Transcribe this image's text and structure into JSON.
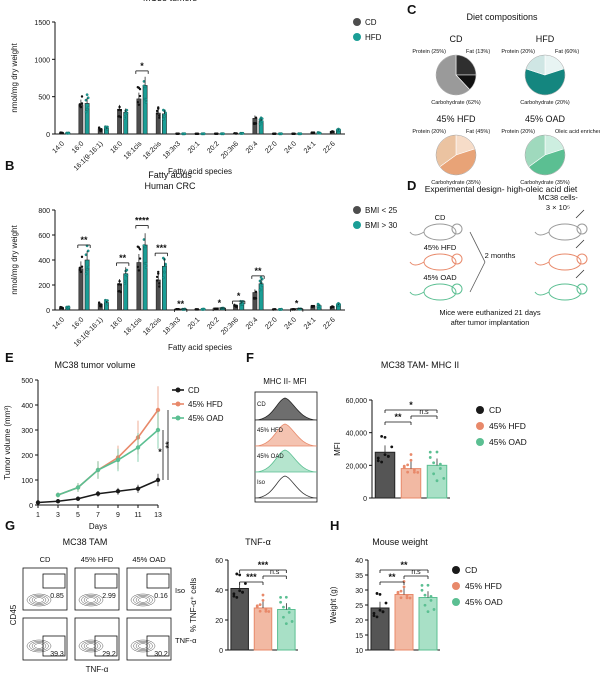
{
  "colors": {
    "cd": "#4d4d4d",
    "hfd": "#1a9e96",
    "hfd_orange": "#e8896a",
    "oad": "#5bbf92",
    "dark": "#1a1a1a"
  },
  "panels": {
    "A": "A",
    "B": "B",
    "C": "C",
    "D": "D",
    "E": "E",
    "F": "F",
    "G": "G",
    "H": "H"
  },
  "chart_data": [
    {
      "id": "A",
      "type": "bar",
      "title": "Fatty acids",
      "subtitle": "MC38 tumors",
      "xlabel": "Fatty acid species",
      "ylabel": "nmol/mg dry weight",
      "ylim": [
        0,
        1500
      ],
      "yticks": [
        0,
        500,
        1000,
        1500
      ],
      "categories": [
        "14:0",
        "16:0",
        "16:1(9-16:1)",
        "18:0",
        "18:1cis",
        "18:2cis",
        "18:3n3",
        "20:1",
        "20:2",
        "20:3n6",
        "20:4",
        "22:0",
        "24:0",
        "24:1",
        "22:6"
      ],
      "series": [
        {
          "name": "CD",
          "values": [
            15,
            390,
            65,
            330,
            470,
            280,
            3,
            3,
            3,
            8,
            210,
            3,
            3,
            15,
            35
          ]
        },
        {
          "name": "HFD",
          "values": [
            12,
            410,
            75,
            290,
            650,
            270,
            3,
            3,
            3,
            8,
            175,
            3,
            3,
            15,
            50
          ]
        }
      ],
      "significance": [
        {
          "category": "18:1cis",
          "label": "*"
        }
      ],
      "legend": "top-right"
    },
    {
      "id": "B",
      "type": "bar",
      "title": "Fatty acids",
      "subtitle": "Human CRC",
      "xlabel": "Fatty acid species",
      "ylabel": "nmol/mg dry weight",
      "ylim": [
        0,
        800
      ],
      "yticks": [
        0,
        200,
        400,
        600,
        800
      ],
      "categories": [
        "14:0",
        "16:0",
        "16:1(9-16:1)",
        "18:0",
        "18:1cis",
        "18:2cis",
        "18:3n3",
        "20:1",
        "20:2",
        "20:3n6",
        "20:4",
        "22:0",
        "24:0",
        "24:1",
        "22:6"
      ],
      "series": [
        {
          "name": "BMI < 25",
          "values": [
            18,
            330,
            45,
            210,
            380,
            240,
            5,
            5,
            8,
            35,
            140,
            4,
            5,
            25,
            28
          ]
        },
        {
          "name": "BMI > 30",
          "values": [
            22,
            400,
            60,
            290,
            520,
            350,
            6,
            6,
            12,
            55,
            210,
            5,
            8,
            35,
            40
          ]
        }
      ],
      "significance": [
        {
          "category": "16:0",
          "label": "**"
        },
        {
          "category": "18:0",
          "label": "**"
        },
        {
          "category": "18:1cis",
          "label": "****"
        },
        {
          "category": "18:2cis",
          "label": "***"
        },
        {
          "category": "18:3n3",
          "label": "**"
        },
        {
          "category": "20:2",
          "label": "*"
        },
        {
          "category": "20:3n6",
          "label": "*"
        },
        {
          "category": "20:4",
          "label": "**"
        },
        {
          "category": "24:0",
          "label": "*"
        }
      ],
      "legend": "top-right"
    },
    {
      "id": "C",
      "type": "pie",
      "title": "Diet compositions",
      "pies": [
        {
          "name": "CD",
          "slices": [
            {
              "label": "Protein (25%)",
              "value": 25
            },
            {
              "label": "Fat (13%)",
              "value": 13
            },
            {
              "label": "Carbohydrate (62%)",
              "value": 62
            }
          ]
        },
        {
          "name": "HFD",
          "slices": [
            {
              "label": "Protein (20%)",
              "value": 20
            },
            {
              "label": "Fat (60%)",
              "value": 60
            },
            {
              "label": "Carbohydrate (20%)",
              "value": 20
            }
          ]
        },
        {
          "name": "45% HFD",
          "slices": [
            {
              "label": "Protein (20%)",
              "value": 20
            },
            {
              "label": "Fat (45%)",
              "value": 45
            },
            {
              "label": "Carbohydrate (35%)",
              "value": 35
            }
          ]
        },
        {
          "name": "45% OAD",
          "slices": [
            {
              "label": "Protein (20%)",
              "value": 20
            },
            {
              "label": "Oleic acid enriched (45%)",
              "value": 45
            },
            {
              "label": "Carbohydrate (35%)",
              "value": 35
            }
          ]
        }
      ]
    },
    {
      "id": "E",
      "type": "line",
      "title": "MC38 tumor volume",
      "xlabel": "Days",
      "ylabel": "Tumor volume (mm³)",
      "x": [
        1,
        3,
        5,
        7,
        9,
        11,
        13
      ],
      "xlim": [
        1,
        13
      ],
      "ylim": [
        0,
        500
      ],
      "yticks": [
        0,
        100,
        200,
        300,
        400,
        500
      ],
      "series": [
        {
          "name": "CD",
          "x": [
            1,
            3,
            5,
            7,
            9,
            11,
            13
          ],
          "values": [
            10,
            15,
            25,
            45,
            55,
            65,
            100
          ]
        },
        {
          "name": "45% HFD",
          "x": [
            3,
            5,
            7,
            9,
            11,
            13
          ],
          "values": [
            40,
            70,
            140,
            190,
            270,
            380
          ]
        },
        {
          "name": "45% OAD",
          "x": [
            3,
            5,
            7,
            9,
            11,
            13
          ],
          "values": [
            40,
            70,
            140,
            180,
            230,
            300
          ]
        }
      ],
      "significance": [
        {
          "label": "*"
        },
        {
          "label": "**"
        }
      ],
      "legend": "top-right"
    },
    {
      "id": "F",
      "type": "bar",
      "title": "MC38 TAM- MHC II",
      "histogram_title": "MHC II- MFI",
      "histogram_labels": [
        "CD",
        "45% HFD",
        "45% OAD",
        "Iso"
      ],
      "ylabel": "MFI",
      "ylim": [
        0,
        60000
      ],
      "yticks": [
        "0",
        "20,000",
        "40,000",
        "60,000"
      ],
      "categories": [
        "CD",
        "45% HFD",
        "45% OAD"
      ],
      "values": [
        28000,
        18000,
        20000
      ],
      "significance": [
        {
          "pair": "CD-45% HFD",
          "label": "**"
        },
        {
          "pair": "CD-45% OAD",
          "label": "*"
        },
        {
          "pair": "45% HFD-45% OAD",
          "label": "n.s"
        }
      ],
      "legend": "right"
    },
    {
      "id": "G",
      "type": "bar",
      "title": "TNF-α",
      "flow_title": "MC38 TAM",
      "flow_columns": [
        "CD",
        "45% HFD",
        "45% OAD"
      ],
      "flow_rows": [
        "Iso",
        "TNF-α"
      ],
      "flow_values": {
        "Iso": [
          "0.85",
          "2.99",
          "0.16"
        ],
        "TNF-α": [
          "39.3",
          "29.2",
          "30.2"
        ]
      },
      "flow_ylabel": "CD45",
      "flow_xlabel": "TNF-α",
      "ylabel": "% TNF-α⁺ cells",
      "ylim": [
        0,
        60
      ],
      "yticks": [
        0,
        20,
        40,
        60
      ],
      "categories": [
        "CD",
        "45% HFD",
        "45% OAD"
      ],
      "values": [
        41,
        28,
        27
      ],
      "significance": [
        {
          "pair": "CD-45% HFD",
          "label": "***"
        },
        {
          "pair": "CD-45% OAD",
          "label": "***"
        },
        {
          "pair": "45% HFD-45% OAD",
          "label": "n.s"
        }
      ]
    },
    {
      "id": "H",
      "type": "bar",
      "title": "Mouse weight",
      "ylabel": "Weight (g)",
      "ylim": [
        10,
        40
      ],
      "yticks": [
        10,
        15,
        20,
        25,
        30,
        35,
        40
      ],
      "categories": [
        "CD",
        "45% HFD",
        "45% OAD"
      ],
      "values": [
        24,
        28.5,
        27.5
      ],
      "significance": [
        {
          "pair": "CD-45% HFD",
          "label": "**"
        },
        {
          "pair": "CD-45% OAD",
          "label": "**"
        },
        {
          "pair": "45% HFD-45% OAD",
          "label": "n.s"
        }
      ],
      "legend": "right"
    }
  ],
  "design": {
    "title": "Experimental design- high-oleic acid diet",
    "groups": [
      "CD",
      "45% HFD",
      "45% OAD"
    ],
    "duration": "2 months",
    "cells": "MC38 cells-",
    "cell_count": "3 × 10⁵",
    "note1": "Mice were euthanized 21 days",
    "note2": "after tumor implantation"
  }
}
